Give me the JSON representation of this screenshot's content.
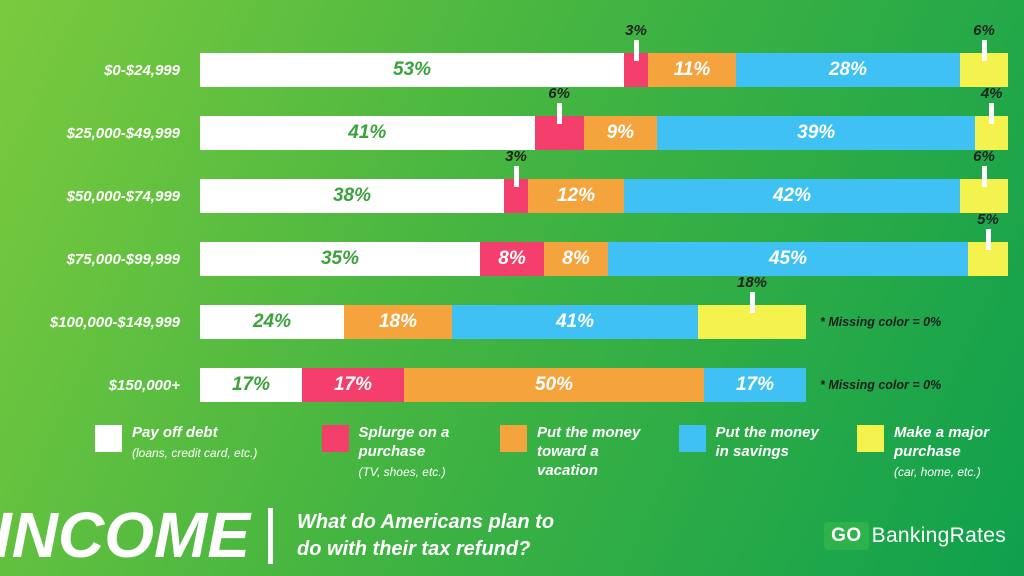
{
  "colors": {
    "debt": "#ffffff",
    "splurge": "#f43f6d",
    "vacation": "#f5a33d",
    "savings": "#3fc2f3",
    "major": "#f4f34d",
    "green_text": "#3ba23c",
    "dark_text": "#232323",
    "background_from": "#7bca3e",
    "background_to": "#0fa04d"
  },
  "chart_data": {
    "type": "bar",
    "stacked": true,
    "orientation": "horizontal",
    "unit": "%",
    "title": "What do Americans plan to do with their tax refund?",
    "categories": [
      "$0-$24,999",
      "$25,000-$49,999",
      "$50,000-$74,999",
      "$75,000-$99,999",
      "$100,000-$149,999",
      "$150,000+"
    ],
    "series": [
      {
        "name": "Pay off debt",
        "color_key": "debt",
        "values": [
          53,
          41,
          38,
          35,
          24,
          17
        ]
      },
      {
        "name": "Splurge on a purchase",
        "color_key": "splurge",
        "values": [
          3,
          6,
          3,
          8,
          0,
          17
        ]
      },
      {
        "name": "Put the money toward a vacation",
        "color_key": "vacation",
        "values": [
          11,
          9,
          12,
          8,
          18,
          50
        ]
      },
      {
        "name": "Put the money in savings",
        "color_key": "savings",
        "values": [
          28,
          39,
          42,
          45,
          41,
          17
        ]
      },
      {
        "name": "Make a major purchase",
        "color_key": "major",
        "values": [
          6,
          4,
          6,
          5,
          18,
          0
        ]
      }
    ],
    "row_notes": [
      "",
      "",
      "",
      "",
      "* Missing color = 0%",
      "* Missing color = 0%"
    ],
    "row_bar_width_pct": [
      100,
      100,
      100,
      100,
      75,
      75
    ],
    "label_position_above": [
      [
        false,
        true,
        false,
        false,
        true
      ],
      [
        false,
        true,
        false,
        false,
        true
      ],
      [
        false,
        true,
        false,
        false,
        true
      ],
      [
        false,
        false,
        false,
        false,
        true
      ],
      [
        false,
        false,
        false,
        false,
        true
      ],
      [
        false,
        false,
        false,
        false,
        false
      ]
    ]
  },
  "legend": {
    "items": [
      {
        "color_key": "debt",
        "title": "Pay off debt",
        "subtitle": "(loans, credit card, etc.)"
      },
      {
        "color_key": "splurge",
        "title": "Splurge on a purchase",
        "subtitle": "(TV, shoes, etc.)"
      },
      {
        "color_key": "vacation",
        "title": "Put the money toward a vacation",
        "subtitle": ""
      },
      {
        "color_key": "savings",
        "title": "Put the money in savings",
        "subtitle": ""
      },
      {
        "color_key": "major",
        "title": "Make a major purchase",
        "subtitle": "(car, home, etc.)"
      }
    ]
  },
  "footer": {
    "title": "INCOME",
    "question_line1": "What do Americans plan to",
    "question_line2": "do with their tax refund?",
    "logo_go": "GO",
    "logo_rest": "BankingRates"
  }
}
